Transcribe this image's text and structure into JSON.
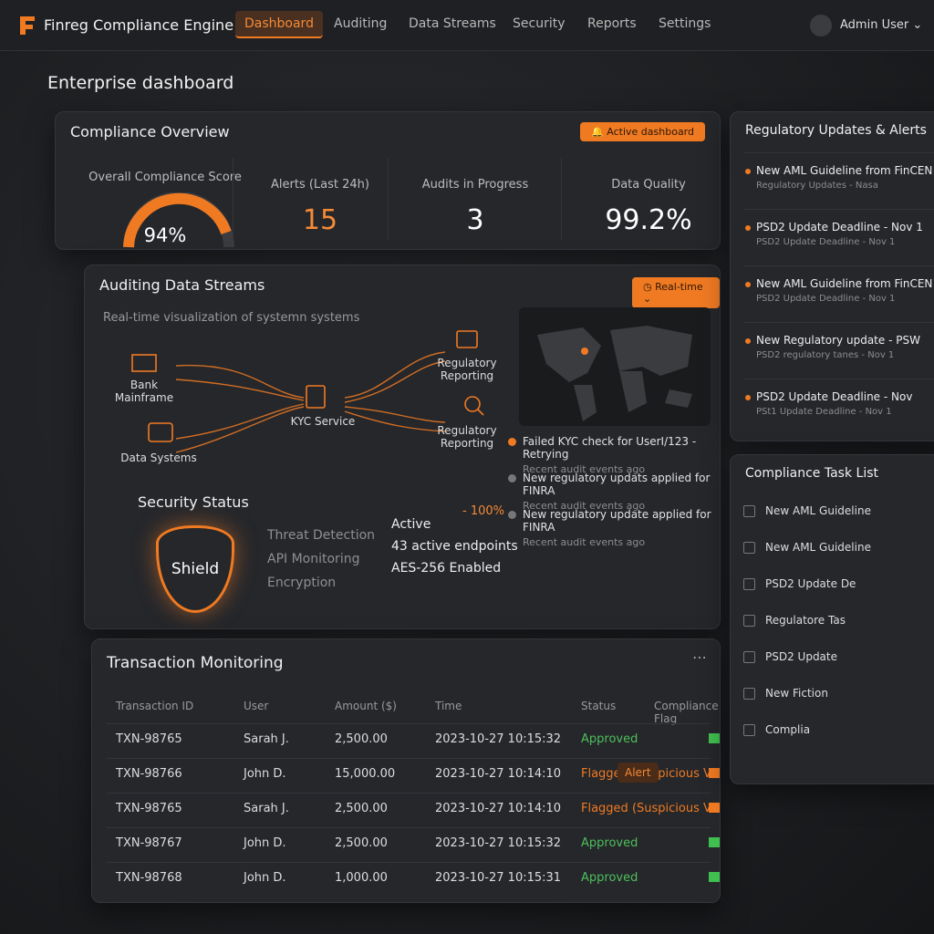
{
  "header": {
    "logo": "Finreg Compliance Engine",
    "nav": [
      "Dashboard",
      "Auditing",
      "Data Streams",
      "Security",
      "Reports",
      "Settings"
    ],
    "user": "Admin User"
  },
  "page_title": "Enterprise dashboard",
  "overview": {
    "title": "Compliance Overview",
    "badge": "Active dashboard",
    "metrics": [
      {
        "label": "Overall Compliance Score",
        "value": "94%"
      },
      {
        "label": "Alerts (Last 24h)",
        "value": "15"
      },
      {
        "label": "Audits in Progress",
        "value": "3"
      },
      {
        "label": "Data Quality",
        "value": "99.2%"
      }
    ]
  },
  "streams": {
    "title": "Auditing Data Streams",
    "subtitle": "Real-time visualization of systemn systems",
    "badge": "Real-time",
    "nodes": [
      "Bank Mainframe",
      "Data Systems",
      "KYC Service",
      "Regulatory Reporting",
      "Regulatory Reporting"
    ],
    "events": [
      {
        "text": "Failed KYC check for UserI/123 - Retrying",
        "sub": "Recent audit events ago"
      },
      {
        "text": "New regulatory updats applied for FINRA",
        "sub": "Recent audit events ago"
      },
      {
        "text": "New regulatory update applied for FINRA",
        "sub": "Recent audit events ago"
      }
    ]
  },
  "security": {
    "title": "Security Status",
    "shield": "Shield",
    "percent": "- 100%",
    "labels": [
      "Threat Detection",
      "API Monitoring",
      "Encryption"
    ],
    "values": [
      "Active",
      "43 active endpoints",
      "AES-256 Enabled"
    ]
  },
  "transactions": {
    "title": "Transaction Monitoring",
    "columns": [
      "Transaction ID",
      "User",
      "Amount ($)",
      "Time",
      "Status",
      "Compliance Flag"
    ],
    "alert": "Alert",
    "rows": [
      [
        "TXN-98765",
        "Sarah J.",
        "2,500.00",
        "2023-10-27 10:15:32",
        "Approved"
      ],
      [
        "TXN-98766",
        "John D.",
        "15,000.00",
        "2023-10-27 10:14:10",
        "Flagged (Suspicious Volume)"
      ],
      [
        "TXN-98765",
        "Sarah J.",
        "2,500.00",
        "2023-10-27 10:14:10",
        "Flagged (Suspicious Volume)"
      ],
      [
        "TXN-98767",
        "John D.",
        "2,500.00",
        "2023-10-27 10:15:32",
        "Approved"
      ],
      [
        "TXN-98768",
        "John D.",
        "1,000.00",
        "2023-10-27 10:15:31",
        "Approved"
      ]
    ]
  },
  "updates": {
    "title": "Regulatory Updates & Alerts",
    "items": [
      {
        "title": "New AML Guideline from FinCEN",
        "sub": "Regulatory Updates - Nasa"
      },
      {
        "title": "PSD2 Update Deadline - Nov 1",
        "sub": "PSD2 Update Deadline - Nov 1"
      },
      {
        "title": "New AML Guideline from FinCEN",
        "sub": "PSD2 Update Deadline - Nov 1"
      },
      {
        "title": "New Regulatory update - PSW",
        "sub": "PSD2 regulatory tanes - Nov 1"
      },
      {
        "title": "PSD2 Update Deadline - Nov",
        "sub": "PSt1 Update Deadline - Nov 1"
      }
    ]
  },
  "tasks": {
    "title": "Compliance Task List",
    "items": [
      "New AML Guideline",
      "New AML Guideline",
      "PSD2 Update De",
      "Regulatore Tas",
      "PSD2 Update",
      "New Fiction",
      "Complia"
    ]
  }
}
